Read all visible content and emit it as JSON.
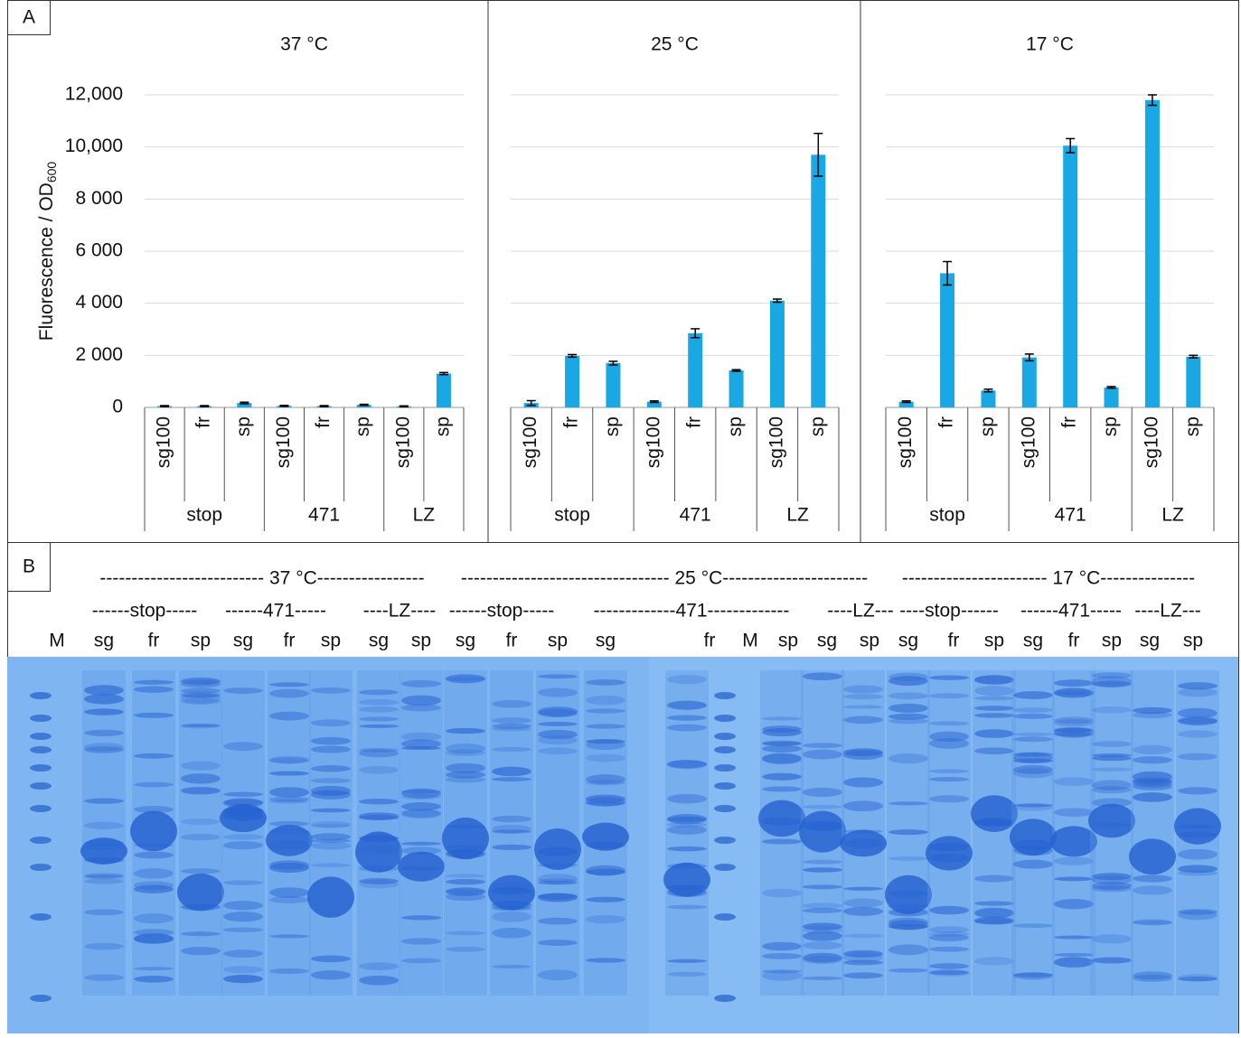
{
  "panels": {
    "a_label": "A",
    "b_label": "B"
  },
  "chart_data": [
    {
      "type": "bar",
      "title": "37 °C",
      "color": "#19a8e3",
      "y_label": {
        "text": "Fluorescence / OD",
        "subscript": "600"
      },
      "ylim": [
        0,
        12000
      ],
      "yticks": [
        0,
        {
          "value": 2000,
          "label": "2 000"
        },
        {
          "value": 4000,
          "label": "4 000"
        },
        {
          "value": 6000,
          "label": "6 000"
        },
        {
          "value": 8000,
          "label": "8 000"
        },
        {
          "value": 10000,
          "label": "10,000"
        },
        {
          "value": 12000,
          "label": "12,000"
        }
      ],
      "show_ytick_labels": true,
      "grid": true,
      "groups": [
        {
          "name": "stop",
          "categories": [
            "sg100",
            "fr",
            "sp"
          ]
        },
        {
          "name": "471",
          "categories": [
            "sg100",
            "fr",
            "sp"
          ]
        },
        {
          "name": "LZ",
          "categories": [
            "sg100",
            "sp"
          ]
        }
      ],
      "values": [
        50,
        50,
        170,
        60,
        50,
        100,
        40,
        1300
      ],
      "errors": [
        20,
        20,
        30,
        20,
        20,
        20,
        20,
        40
      ]
    },
    {
      "type": "bar",
      "title": "25 °C",
      "color": "#19a8e3",
      "ylim": [
        0,
        12000
      ],
      "yticks": [
        0,
        2000,
        4000,
        6000,
        8000,
        10000,
        12000
      ],
      "show_ytick_labels": false,
      "grid": true,
      "groups": [
        {
          "name": "stop",
          "categories": [
            "sg100",
            "fr",
            "sp"
          ]
        },
        {
          "name": "471",
          "categories": [
            "sg100",
            "fr",
            "sp"
          ]
        },
        {
          "name": "LZ",
          "categories": [
            "sg100",
            "sp"
          ]
        }
      ],
      "values": [
        170,
        1980,
        1700,
        220,
        2850,
        1420,
        4100,
        9700
      ],
      "errors": [
        90,
        50,
        70,
        30,
        170,
        30,
        60,
        820
      ]
    },
    {
      "type": "bar",
      "title": "17 °C",
      "color": "#19a8e3",
      "ylim": [
        0,
        12000
      ],
      "yticks": [
        0,
        2000,
        4000,
        6000,
        8000,
        10000,
        12000
      ],
      "show_ytick_labels": false,
      "grid": true,
      "groups": [
        {
          "name": "stop",
          "categories": [
            "sg100",
            "fr",
            "sp"
          ]
        },
        {
          "name": "471",
          "categories": [
            "sg100",
            "fr",
            "sp"
          ]
        },
        {
          "name": "LZ",
          "categories": [
            "sg100",
            "sp"
          ]
        }
      ],
      "values": [
        220,
        5150,
        650,
        1920,
        10050,
        770,
        11800,
        1950
      ],
      "errors": [
        30,
        450,
        50,
        130,
        270,
        30,
        200,
        50
      ]
    }
  ],
  "gel": {
    "temperature_headers": [
      "-------------------------- 37 °C-----------------",
      "--------------------------------- 25 °C-----------------------",
      "----------------------- 17 °C---------------"
    ],
    "construct_headers": [
      "------stop-----",
      "------471-----",
      "----LZ----",
      "------stop-----",
      "-------------471-------------",
      "----LZ---",
      "----stop------",
      "------471-----",
      "----LZ---"
    ],
    "lanes": [
      "M",
      "sg",
      "fr",
      "sp",
      "sg",
      "fr",
      "sp",
      "sg",
      "sp",
      "sg",
      "fr",
      "sp",
      "sg",
      "fr",
      "M",
      "sp",
      "sg",
      "sp",
      "sg",
      "fr",
      "sp",
      "sg",
      "fr",
      "sp",
      "sg",
      "sp"
    ]
  }
}
